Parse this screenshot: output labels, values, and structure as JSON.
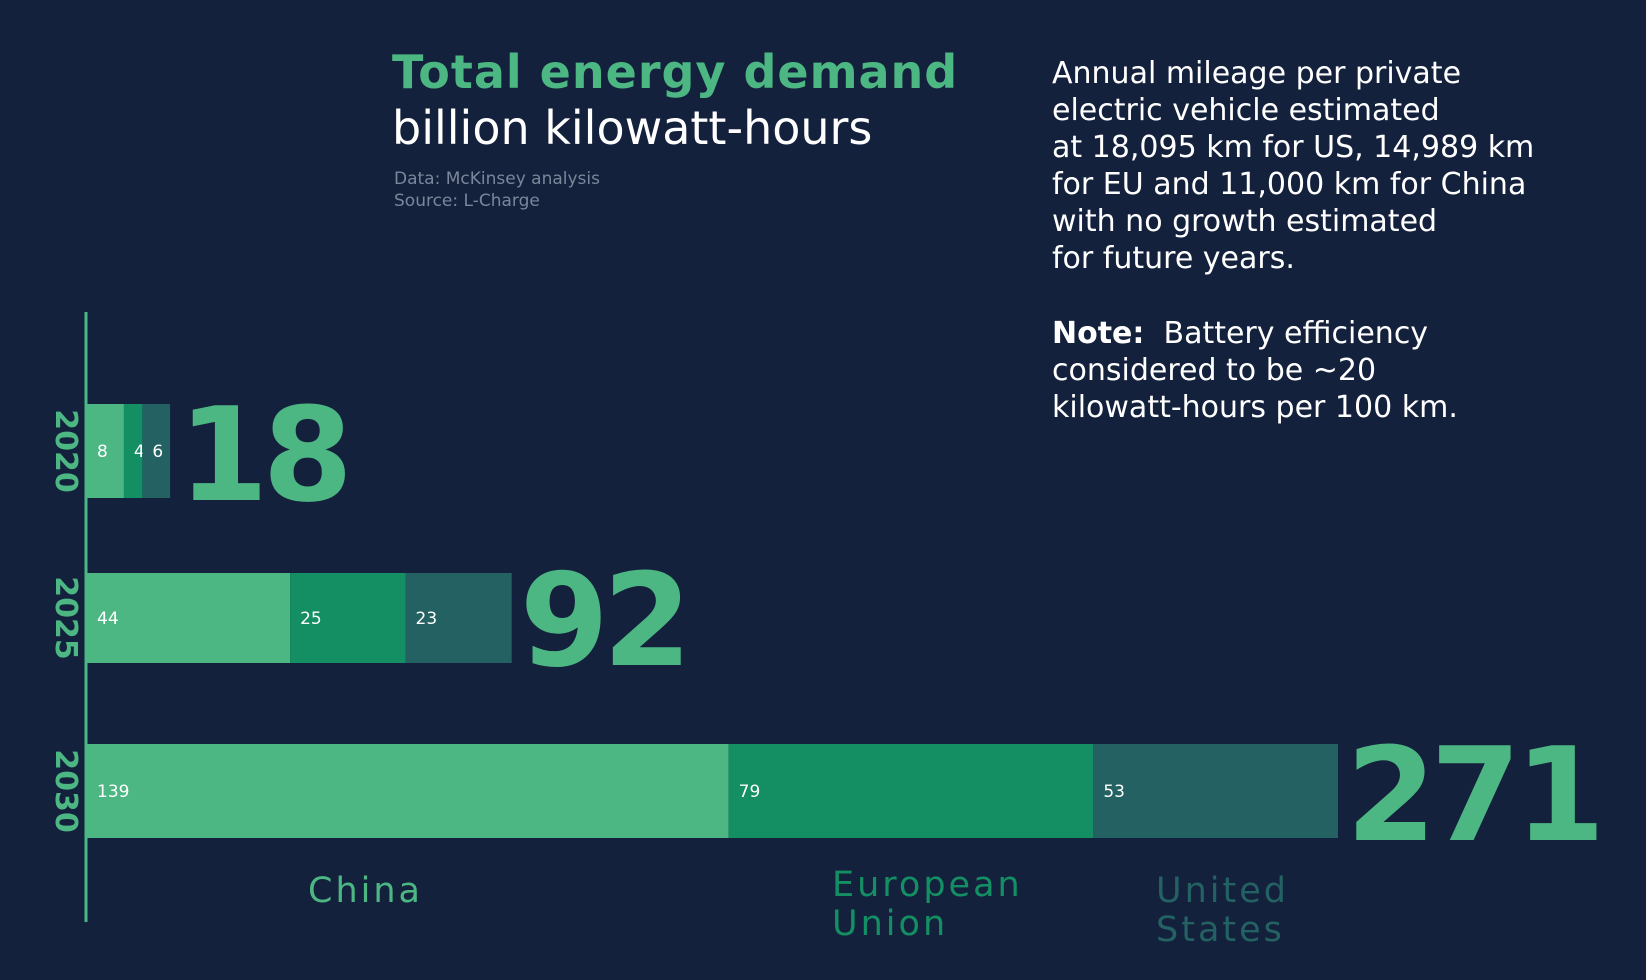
{
  "title": "Total energy demand",
  "subtitle": "billion kilowatt-hours",
  "source_lines": [
    "Data: McKinsey analysis",
    "Source: L-Charge"
  ],
  "note_main_lines": [
    "Annual mileage per private",
    "electric vehicle estimated",
    "at 18,095 km for US, 14,989 km",
    "for EU and 11,000 km for China",
    "with no growth estimated",
    "for future years."
  ],
  "note": {
    "label": "Note:",
    "first_line": "Battery efficiency",
    "lines": [
      "considered to be ~20",
      "kilowatt-hours per 100 km."
    ]
  },
  "colors": {
    "background": "#14213d",
    "accent": "#4cb782",
    "china": "#4cb782",
    "eu": "#138f63",
    "us": "#236162",
    "axis": "#4cb782"
  },
  "chart_data": {
    "type": "bar",
    "orientation": "horizontal",
    "stacked": true,
    "categories": [
      "2020",
      "2025",
      "2030"
    ],
    "series": [
      {
        "name": "China",
        "values": [
          8,
          44,
          139
        ],
        "color": "#4cb782"
      },
      {
        "name": "European Union",
        "values": [
          4,
          25,
          79
        ],
        "color": "#138f63"
      },
      {
        "name": "United States",
        "values": [
          6,
          23,
          53
        ],
        "color": "#236162"
      }
    ],
    "totals": [
      18,
      92,
      271
    ],
    "legend_labels": [
      {
        "series": "China",
        "lines": [
          "China"
        ]
      },
      {
        "series": "European Union",
        "lines": [
          "European",
          "Union"
        ]
      },
      {
        "series": "United States",
        "lines": [
          "United",
          "States"
        ]
      }
    ],
    "title": "Total energy demand",
    "subtitle": "billion kilowatt-hours",
    "xlim": [
      0,
      271
    ],
    "legend_position": "bottom",
    "grid": false
  }
}
